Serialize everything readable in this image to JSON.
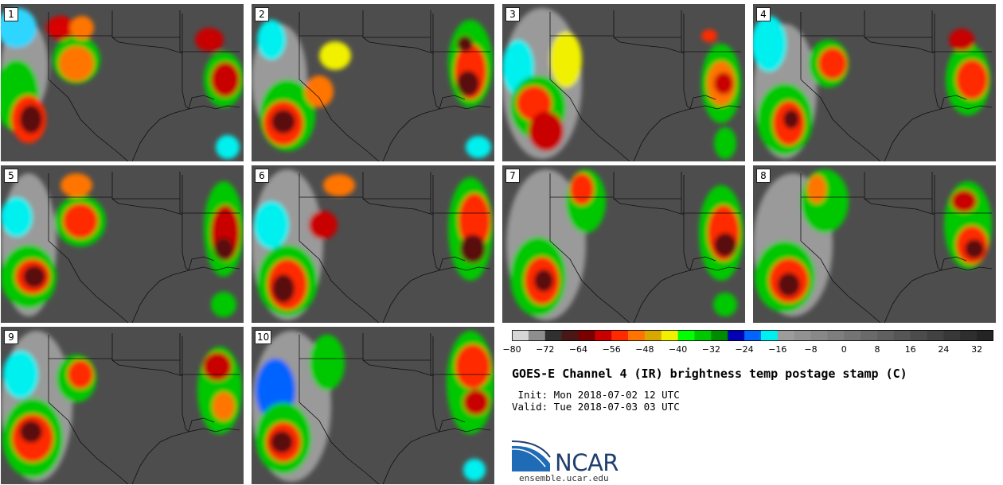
{
  "panels": [
    {
      "label": "1"
    },
    {
      "label": "2"
    },
    {
      "label": "3"
    },
    {
      "label": "4"
    },
    {
      "label": "5"
    },
    {
      "label": "6"
    },
    {
      "label": "7"
    },
    {
      "label": "8"
    },
    {
      "label": "9"
    },
    {
      "label": "10"
    }
  ],
  "colorbar": {
    "colors": [
      "#d6d6d6",
      "#8e8e8e",
      "#303030",
      "#4a1616",
      "#7a0000",
      "#c80000",
      "#ff2a00",
      "#ff7400",
      "#d8a800",
      "#f0f000",
      "#00ff00",
      "#00c800",
      "#008c00",
      "#0000b4",
      "#0064ff",
      "#00f0f0",
      "#9c9c9c",
      "#929292",
      "#888888",
      "#7e7e7e",
      "#747474",
      "#6a6a6a",
      "#606060",
      "#565656",
      "#4c4c4c",
      "#424242",
      "#383838",
      "#2e2e2e",
      "#242424"
    ],
    "ticks": [
      "−80",
      "−72",
      "−64",
      "−56",
      "−48",
      "−40",
      "−32",
      "−24",
      "−16",
      "−8",
      "0",
      "8",
      "16",
      "24",
      "32"
    ]
  },
  "title": "GOES-E Channel 4 (IR) brightness temp postage stamp (C)",
  "init": " Init: Mon 2018-07-02 12 UTC",
  "valid": "Valid: Tue 2018-07-03 03 UTC",
  "logo": {
    "text": "NCAR",
    "url": "ensemble.ucar.edu",
    "color": "#1f3f6e"
  }
}
